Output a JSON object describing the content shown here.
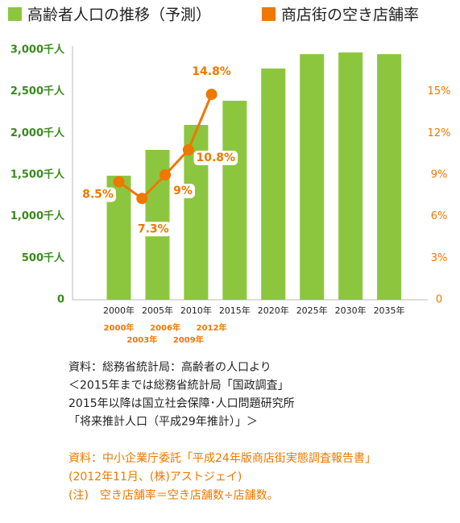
{
  "chart_data": {
    "type": "bar_line",
    "xlim": [
      1994,
      2040
    ],
    "ylim": [
      0,
      3000
    ],
    "yticks": [
      0,
      {
        "value": 500,
        "label": "500千人"
      },
      {
        "value": 1000,
        "label": "1,000千人"
      },
      {
        "value": 1500,
        "label": "1,500千人"
      },
      {
        "value": 2000,
        "label": "2,000千人"
      },
      {
        "value": 2500,
        "label": "2,500千人"
      },
      {
        "value": 3000,
        "label": "3,000千人"
      }
    ],
    "y2lim": [
      0,
      18
    ],
    "y2ticks": [
      0,
      {
        "value": 3,
        "label": "3%"
      },
      {
        "value": 6,
        "label": "6%"
      },
      {
        "value": 9,
        "label": "9%"
      },
      {
        "value": 12,
        "label": "12%"
      },
      {
        "value": 15,
        "label": "15%"
      }
    ],
    "series": [
      {
        "name": "高齢者人口の推移（予測）",
        "type": "bar",
        "color": "#8cc63f",
        "x": [
          2000,
          2005,
          2010,
          2015,
          2020,
          2025,
          2030,
          2035
        ],
        "x_labels": [
          "2000年",
          "2005年",
          "2010年",
          "2015年",
          "2020年",
          "2025年",
          "2030年",
          "2035年"
        ],
        "values": [
          1490,
          1800,
          2100,
          2390,
          2777,
          2950,
          2970,
          2950
        ]
      },
      {
        "name": "商店街の空き店舗率",
        "type": "line",
        "axis": "y2",
        "color": "#ee7800",
        "x": [
          2000,
          2003,
          2006,
          2009,
          2012
        ],
        "x_labels": [
          "2000年",
          "2003年",
          "2006年",
          "2009年",
          "2012年"
        ],
        "values": [
          8.5,
          7.3,
          9,
          10.8,
          14.8
        ],
        "value_labels": [
          "8.5%",
          "7.3%",
          "9%",
          "10.8%",
          "14.8%"
        ]
      }
    ],
    "notes": [
      "資料：総務省統計局：高齢者の人口より",
      "＜2015年までは総務省統計局「国政調査」",
      "2015年以降は国立社会保障･人口問題研究所",
      "「将来推計人口（平成29年推計）」＞"
    ],
    "survey_notes": [
      "資料：中小企業庁委託「平成24年版商店街実態調査報告書」",
      "(2012年11月、(株)アストジェイ)",
      "(注)　空き店舗率＝空き店舗数÷店舗数。"
    ]
  }
}
